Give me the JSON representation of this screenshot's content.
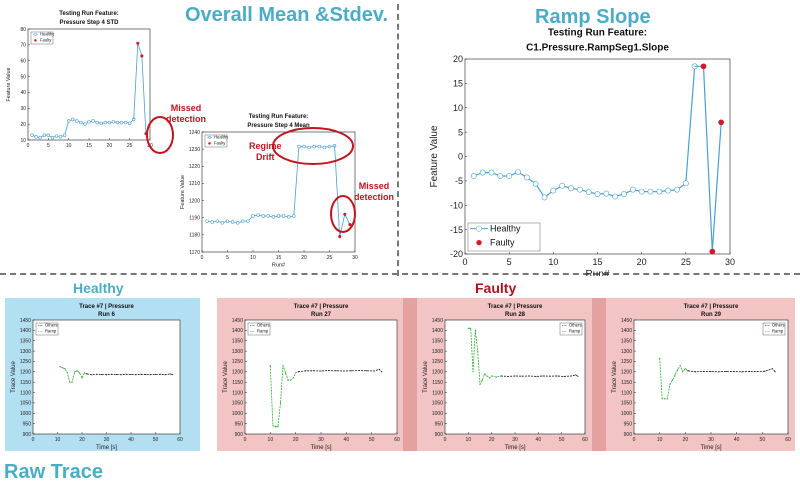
{
  "headings": {
    "overall": "Overall Mean &Stdev.",
    "ramp": "Ramp Slope",
    "raw": "Raw Trace",
    "healthy": "Healthy",
    "faulty": "Faulty"
  },
  "annotations": {
    "missed1_l1": "Missed",
    "missed1_l2": "detection",
    "regime_l1": "Regime",
    "regime_l2": "Drift",
    "missed2_l1": "Missed",
    "missed2_l2": "detection"
  },
  "colors": {
    "accent": "#4bacc6",
    "healthy_line": "#4a9fd6",
    "faulty_point": "#d6182a",
    "annotation": "#c0141e",
    "healthy_bg": "#b3dff2",
    "faulty_bg": "#f2c4c4",
    "faulty_bg_dark": "#e5a0a0",
    "ramp_green": "#2eab2e"
  },
  "chart_data": [
    {
      "id": "std",
      "type": "line",
      "title": "Testing Run Feature:",
      "subtitle": "Pressure Step 4 STD",
      "xlabel": "Run#",
      "ylabel": "Feature Value",
      "xlim": [
        0,
        30
      ],
      "ylim": [
        10,
        80
      ],
      "xticks": [
        0,
        5,
        10,
        15,
        20,
        25,
        30
      ],
      "yticks": [
        10,
        20,
        30,
        40,
        50,
        60,
        70,
        80
      ],
      "legend_position": "top-left",
      "series": [
        {
          "name": "Healthy",
          "x": [
            1,
            2,
            3,
            4,
            5,
            6,
            7,
            8,
            9,
            10,
            11,
            12,
            13,
            14,
            15,
            16,
            17,
            18,
            19,
            20,
            21,
            22,
            23,
            24,
            25,
            26
          ],
          "values": [
            13,
            12,
            11.5,
            13,
            13,
            11.5,
            12.5,
            12,
            13,
            22,
            23,
            22,
            21,
            20,
            21.5,
            22,
            21,
            20.5,
            21,
            21,
            21.5,
            21,
            21,
            21,
            20.5,
            23
          ]
        },
        {
          "name": "Faulty",
          "x": [
            27,
            28,
            29
          ],
          "values": [
            71,
            63,
            14
          ]
        }
      ]
    },
    {
      "id": "mean",
      "type": "line",
      "title": "Testing Run Feature:",
      "subtitle": "Pressure Step 4 Mean",
      "xlabel": "Run#",
      "ylabel": "Feature Value",
      "xlim": [
        0,
        30
      ],
      "ylim": [
        1170,
        1240
      ],
      "xticks": [
        0,
        5,
        10,
        15,
        20,
        25,
        30
      ],
      "yticks": [
        1170,
        1180,
        1190,
        1200,
        1210,
        1220,
        1230,
        1240
      ],
      "legend_position": "top-left",
      "series": [
        {
          "name": "Healthy",
          "x": [
            1,
            2,
            3,
            4,
            5,
            6,
            7,
            8,
            9,
            10,
            11,
            12,
            13,
            14,
            15,
            16,
            17,
            18,
            19,
            20,
            21,
            22,
            23,
            24,
            25,
            26
          ],
          "values": [
            1188,
            1187.5,
            1188,
            1187,
            1188,
            1187.5,
            1187,
            1188,
            1188,
            1191,
            1191.5,
            1191,
            1191,
            1190.5,
            1191,
            1191,
            1190.5,
            1191,
            1231.5,
            1231.5,
            1231,
            1231.5,
            1231.5,
            1231,
            1231.5,
            1232
          ]
        },
        {
          "name": "Faulty",
          "x": [
            27,
            28,
            29
          ],
          "values": [
            1179,
            1192,
            1186
          ]
        }
      ]
    },
    {
      "id": "ramp",
      "type": "line",
      "title": "Testing Run Feature:",
      "subtitle": "C1.Pressure.RampSeg1.Slope",
      "xlabel": "Run#",
      "ylabel": "Feature Value",
      "xlim": [
        0,
        30
      ],
      "ylim": [
        -20,
        20
      ],
      "xticks": [
        0,
        5,
        10,
        15,
        20,
        25,
        30
      ],
      "yticks": [
        -20,
        -15,
        -10,
        -5,
        0,
        5,
        10,
        15,
        20
      ],
      "legend_position": "bottom-left",
      "series": [
        {
          "name": "Healthy",
          "x": [
            1,
            2,
            3,
            4,
            5,
            6,
            7,
            8,
            9,
            10,
            11,
            12,
            13,
            14,
            15,
            16,
            17,
            18,
            19,
            20,
            21,
            22,
            23,
            24,
            25,
            26
          ],
          "values": [
            -4,
            -3.3,
            -3.3,
            -4,
            -4,
            -3.2,
            -4.3,
            -5.6,
            -8.4,
            -7,
            -6,
            -6.5,
            -6.8,
            -7.3,
            -7.7,
            -7.6,
            -8.2,
            -7.7,
            -6.8,
            -7.2,
            -7.2,
            -7.2,
            -7,
            -6.8,
            -5.5,
            18.5
          ]
        },
        {
          "name": "Faulty",
          "x": [
            27,
            28,
            29
          ],
          "values": [
            18.5,
            -19.5,
            7
          ]
        }
      ]
    },
    {
      "id": "run6",
      "type": "line",
      "title": "Trace #7 | Pressure",
      "subtitle": "Run 6",
      "xlabel": "Time [s]",
      "ylabel": "Trace Value",
      "xlim": [
        0,
        60
      ],
      "ylim": [
        900,
        1450
      ],
      "xticks": [
        0,
        10,
        20,
        30,
        40,
        50,
        60
      ],
      "yticks": [
        900,
        950,
        1000,
        1050,
        1100,
        1150,
        1200,
        1250,
        1300,
        1350,
        1400,
        1450
      ],
      "legend_position": "top-left",
      "series": [
        {
          "name": "Ramp",
          "x": [
            11,
            12,
            13,
            14,
            15,
            16,
            17,
            18,
            19,
            20,
            21,
            22
          ],
          "values": [
            1225,
            1220,
            1215,
            1195,
            1150,
            1150,
            1200,
            1205,
            1195,
            1170,
            1195,
            1190
          ]
        },
        {
          "name": "Others",
          "x": [
            22,
            24,
            26,
            28,
            30,
            32,
            34,
            36,
            38,
            40,
            42,
            44,
            46,
            48,
            50,
            52,
            54,
            56,
            57
          ],
          "values": [
            1190,
            1185,
            1188,
            1187,
            1186,
            1188,
            1187,
            1186,
            1188,
            1187,
            1186,
            1188,
            1187,
            1186,
            1187,
            1188,
            1186,
            1190,
            1186
          ]
        }
      ]
    },
    {
      "id": "run27",
      "type": "line",
      "title": "Trace #7 | Pressure",
      "subtitle": "Run 27",
      "xlabel": "Time [s]",
      "ylabel": "Trace Value",
      "xlim": [
        0,
        60
      ],
      "ylim": [
        900,
        1450
      ],
      "xticks": [
        0,
        10,
        20,
        30,
        40,
        50,
        60
      ],
      "yticks": [
        900,
        950,
        1000,
        1050,
        1100,
        1150,
        1200,
        1250,
        1300,
        1350,
        1400,
        1450
      ],
      "legend_position": "top-left",
      "series": [
        {
          "name": "Ramp",
          "x": [
            10,
            11,
            12,
            13,
            14,
            15,
            16,
            17,
            18,
            19,
            20,
            21
          ],
          "values": [
            1230,
            940,
            935,
            935,
            1050,
            1230,
            1195,
            1160,
            1160,
            1170,
            1195,
            1200
          ]
        },
        {
          "name": "Others",
          "x": [
            21,
            24,
            27,
            30,
            33,
            36,
            39,
            42,
            45,
            48,
            51,
            53,
            54
          ],
          "values": [
            1200,
            1205,
            1205,
            1204,
            1206,
            1205,
            1204,
            1205,
            1206,
            1205,
            1204,
            1212,
            1200
          ]
        }
      ]
    },
    {
      "id": "run28",
      "type": "line",
      "title": "Trace #7 | Pressure",
      "subtitle": "Run 28",
      "xlabel": "Time [s]",
      "ylabel": "Trace Value",
      "xlim": [
        0,
        60
      ],
      "ylim": [
        900,
        1450
      ],
      "xticks": [
        0,
        10,
        20,
        30,
        40,
        50,
        60
      ],
      "yticks": [
        900,
        950,
        1000,
        1050,
        1100,
        1150,
        1200,
        1250,
        1300,
        1350,
        1400,
        1450
      ],
      "legend_position": "top-right",
      "series": [
        {
          "name": "Ramp",
          "x": [
            10,
            11,
            12,
            13,
            14,
            15,
            16,
            17,
            18,
            19,
            20,
            22,
            24
          ],
          "values": [
            1410,
            1410,
            1200,
            1400,
            1300,
            1140,
            1160,
            1190,
            1180,
            1170,
            1180,
            1175,
            1180
          ]
        },
        {
          "name": "Others",
          "x": [
            24,
            27,
            30,
            33,
            36,
            39,
            42,
            45,
            48,
            51,
            54,
            56,
            57
          ],
          "values": [
            1180,
            1178,
            1180,
            1179,
            1180,
            1178,
            1180,
            1179,
            1180,
            1178,
            1180,
            1185,
            1178
          ]
        }
      ]
    },
    {
      "id": "run29",
      "type": "line",
      "title": "Trace #7 | Pressure",
      "subtitle": "Run 29",
      "xlabel": "Time [s]",
      "ylabel": "Trace Value",
      "xlim": [
        0,
        60
      ],
      "ylim": [
        900,
        1450
      ],
      "xticks": [
        0,
        10,
        20,
        30,
        40,
        50,
        60
      ],
      "yticks": [
        900,
        950,
        1000,
        1050,
        1100,
        1150,
        1200,
        1250,
        1300,
        1350,
        1400,
        1450
      ],
      "legend_position": "top-right",
      "series": [
        {
          "name": "Ramp",
          "x": [
            10,
            11,
            12,
            13,
            14,
            15,
            16,
            17,
            18,
            19,
            20,
            21
          ],
          "values": [
            1265,
            1070,
            1070,
            1070,
            1140,
            1160,
            1185,
            1210,
            1230,
            1200,
            1215,
            1205
          ]
        },
        {
          "name": "Others",
          "x": [
            21,
            24,
            27,
            30,
            33,
            36,
            39,
            42,
            45,
            48,
            51,
            54,
            55
          ],
          "values": [
            1205,
            1200,
            1202,
            1201,
            1200,
            1202,
            1201,
            1200,
            1202,
            1201,
            1203,
            1215,
            1200
          ]
        }
      ]
    }
  ]
}
